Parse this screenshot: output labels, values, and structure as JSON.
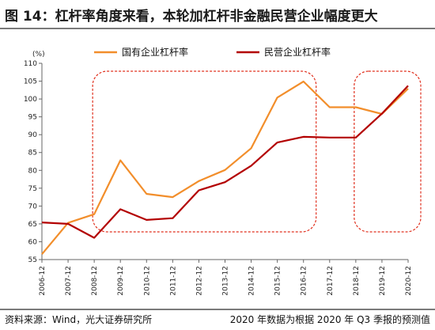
{
  "header": {
    "title": "图 14：杠杆率角度来看，本轮加杠杆非金融民营企业幅度更大"
  },
  "footer": {
    "source": "资料来源：Wind，光大证券研究所",
    "note": "2020 年数据为根据 2020 年 Q3 季报的预测值"
  },
  "chart_data": {
    "type": "line",
    "unit_label": "(%)",
    "categories": [
      "2006-12",
      "2007-12",
      "2008-12",
      "2009-12",
      "2010-12",
      "2011-12",
      "2012-12",
      "2013-12",
      "2014-12",
      "2015-12",
      "2016-12",
      "2017-12",
      "2018-12",
      "2019-12",
      "2020-12"
    ],
    "ylim": [
      55,
      110
    ],
    "yticks": [
      55,
      60,
      65,
      70,
      75,
      80,
      85,
      90,
      95,
      100,
      105,
      110
    ],
    "series": [
      {
        "name": "国有企业杠杆率",
        "color": "#f28e2b",
        "values": [
          56.5,
          65.3,
          67.7,
          82.8,
          73.4,
          72.5,
          77.0,
          80.1,
          86.2,
          100.4,
          104.9,
          97.7,
          97.7,
          95.8,
          102.9
        ]
      },
      {
        "name": "民营企业杠杆率",
        "color": "#b30000",
        "values": [
          65.4,
          65.0,
          61.1,
          69.1,
          66.1,
          66.6,
          74.4,
          76.7,
          81.3,
          87.8,
          89.4,
          89.2,
          89.2,
          95.9,
          103.7
        ]
      }
    ],
    "highlight_ranges": [
      {
        "from": "2008-12",
        "to": "2016-12",
        "color": "#e0301e"
      },
      {
        "from": "2018-12",
        "to": "2020-12",
        "color": "#e0301e"
      }
    ],
    "legend_position": "top",
    "grid": false
  }
}
